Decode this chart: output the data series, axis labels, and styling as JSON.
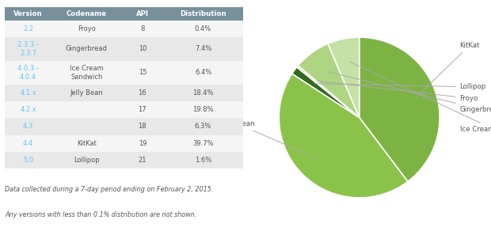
{
  "table_headers": [
    "Version",
    "Codename",
    "API",
    "Distribution"
  ],
  "table_rows": [
    [
      "2.2",
      "Froyo",
      "8",
      "0.4%"
    ],
    [
      "2.3.3 -\n2.3.7",
      "Gingerbread",
      "10",
      "7.4%"
    ],
    [
      "4.0.3 -\n4.0.4",
      "Ice Cream\nSandwich",
      "15",
      "6.4%"
    ],
    [
      "4.1.x",
      "Jelly Bean",
      "16",
      "18.4%"
    ],
    [
      "4.2.x",
      "",
      "17",
      "19.8%"
    ],
    [
      "4.3",
      "",
      "18",
      "6.3%"
    ],
    [
      "4.4",
      "KitKat",
      "19",
      "39.7%"
    ],
    [
      "5.0",
      "Lollipop",
      "21",
      "1.6%"
    ]
  ],
  "header_bg": "#78909c",
  "header_fg": "#ffffff",
  "row_bg_light": "#f5f5f5",
  "row_bg_dark": "#e8e8e8",
  "version_color": "#5bc8f5",
  "text_color": "#555555",
  "pie_labels": [
    "KitKat",
    "Jelly Bean",
    "Lollipop",
    "Froyo",
    "Gingerbread",
    "Ice Cream Sandwich"
  ],
  "pie_values": [
    39.7,
    44.5,
    1.6,
    0.4,
    7.4,
    6.4
  ],
  "pie_colors": [
    "#7cb342",
    "#8bc34a",
    "#33691e",
    "#dce775",
    "#aed581",
    "#c5e1a5"
  ],
  "footnote_line1": "Data collected during a 7-day period ending on February 2, 2015.",
  "footnote_line2": "Any versions with less than 0.1% distribution are not shown.",
  "bg_color": "#ffffff"
}
